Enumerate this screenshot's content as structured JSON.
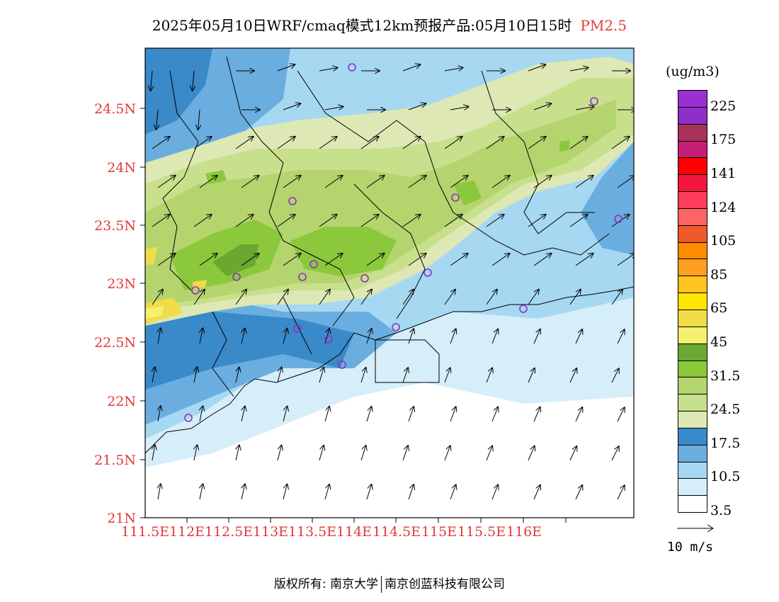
{
  "title": {
    "main": "2025年05月10日WRF/cmaq模式12km预报产品:05月10日15时",
    "pollutant": "PM2.5"
  },
  "axes": {
    "lat_ticks": [
      "24.5N",
      "24N",
      "23.5N",
      "23N",
      "22.5N",
      "22N",
      "21.5N",
      "21N"
    ],
    "lon_ticks": [
      "111.5E",
      "112E",
      "112.5E",
      "113E",
      "113.5E",
      "114E",
      "114.5E",
      "115E",
      "115.5E",
      "116E"
    ]
  },
  "legend": {
    "unit": "(ug/m3)",
    "colors": [
      "#9b2fd4",
      "#8f2ec8",
      "#a8325a",
      "#c81e7a",
      "#ff0000",
      "#f2153c",
      "#ff3c5a",
      "#ff6464",
      "#f05a28",
      "#ff8c00",
      "#ffa023",
      "#ffc31e",
      "#ffe600",
      "#f0dc46",
      "#f5f06e",
      "#6aa832",
      "#8cc83c",
      "#b4d46e",
      "#c8e08c",
      "#dde8b4",
      "#3a89c9",
      "#6aaee0",
      "#a6d8f2",
      "#d6eef9",
      "#ffffff"
    ],
    "labels": [
      "225",
      "175",
      "141",
      "124",
      "105",
      "85",
      "65",
      "45",
      "31.5",
      "24.5",
      "17.5",
      "10.5",
      "3.5"
    ]
  },
  "wind_reference": {
    "label": "10 m/s"
  },
  "stations": [
    "s1",
    "s2",
    "s3",
    "s4",
    "s5",
    "s6",
    "s7",
    "s8",
    "s9",
    "s10",
    "s11",
    "s12",
    "s13",
    "s14",
    "s15",
    "s16"
  ],
  "footer": {
    "left": "版权所有: 南京大学",
    "right": "南京创蓝科技有限公司"
  }
}
